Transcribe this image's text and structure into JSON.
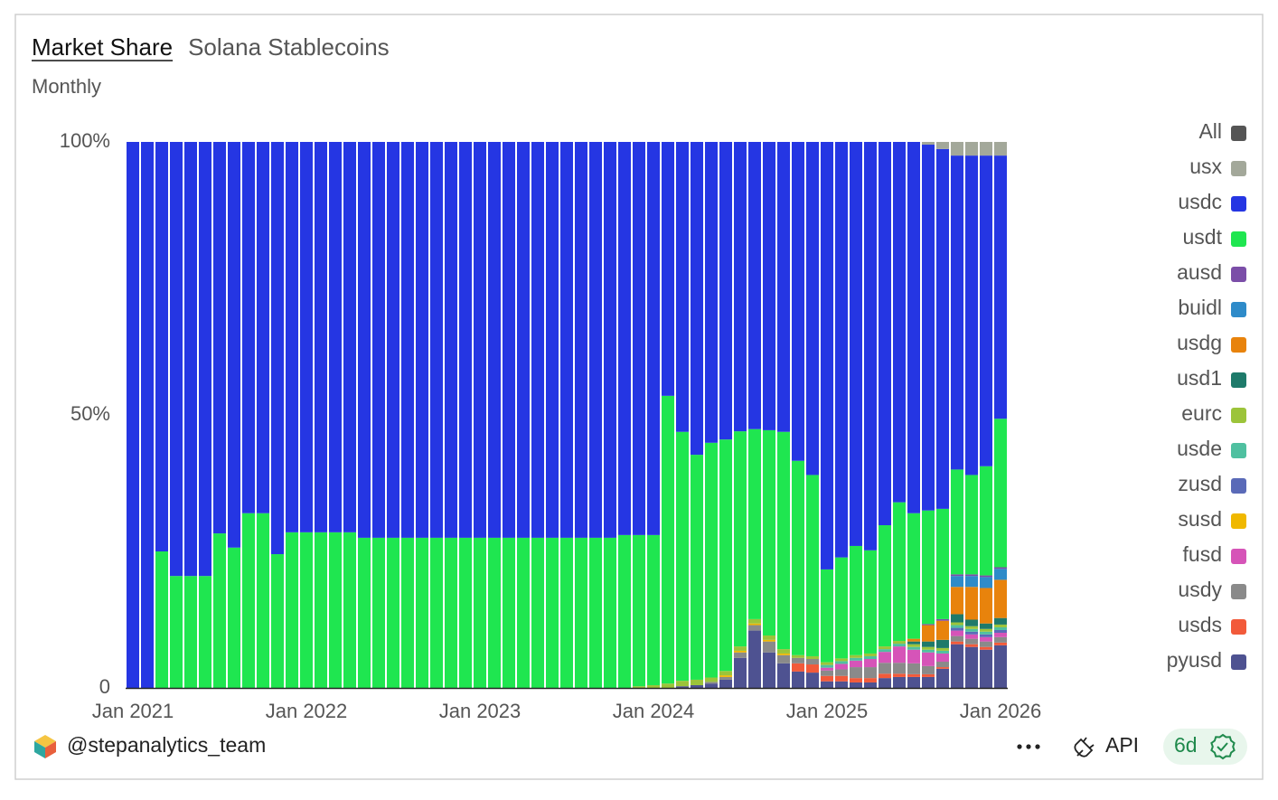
{
  "header": {
    "title": "Market Share",
    "subtitle": "Solana Stablecoins",
    "period": "Monthly"
  },
  "footer": {
    "author": "@stepanalytics_team",
    "api": "API",
    "age": "6d"
  },
  "legend_toggle": {
    "label": "All",
    "color": "#555555"
  },
  "chart_data": {
    "type": "stacked_bar",
    "categories": [
      "Jan 2021",
      null,
      null,
      null,
      null,
      null,
      null,
      null,
      null,
      null,
      null,
      null,
      "Jan 2022",
      null,
      null,
      null,
      null,
      null,
      null,
      null,
      null,
      null,
      null,
      null,
      "Jan 2023",
      null,
      null,
      null,
      null,
      null,
      null,
      null,
      null,
      null,
      null,
      null,
      "Jan 2024",
      null,
      null,
      null,
      null,
      null,
      null,
      null,
      null,
      null,
      null,
      null,
      "Jan 2025",
      null,
      null,
      null,
      null,
      null,
      null,
      null,
      null,
      null,
      null,
      null,
      "Jan 2026"
    ],
    "ylim": [
      0,
      100
    ],
    "yticks": [
      0,
      {
        "value": 50,
        "label": "50%"
      },
      {
        "value": 100,
        "label": "100%"
      }
    ],
    "legend": "right",
    "series": [
      {
        "name": "usx",
        "color": "#a3a89a",
        "values": [
          0,
          0,
          0,
          0,
          0,
          0,
          0,
          0,
          0,
          0,
          0,
          0,
          0,
          0,
          0,
          0,
          0,
          0,
          0,
          0,
          0,
          0,
          0,
          0,
          0,
          0,
          0,
          0,
          0,
          0,
          0,
          0,
          0,
          0,
          0,
          0,
          0,
          0,
          0,
          0,
          0,
          0,
          0,
          0,
          0,
          0,
          0,
          0,
          0,
          0,
          0,
          0,
          0,
          0,
          0,
          0.5,
          1.3,
          2.5,
          2.5,
          2.5,
          2.5
        ]
      },
      {
        "name": "usdc",
        "color": "#2536e3",
        "values": [
          100,
          100,
          75,
          79.5,
          79.5,
          79.5,
          71.7,
          74.3,
          68,
          68,
          75.5,
          71.5,
          71.5,
          71.5,
          71.5,
          71.5,
          72.5,
          72.5,
          72.5,
          72.5,
          72.5,
          72.5,
          72.5,
          72.5,
          72.5,
          72.5,
          72.5,
          72.5,
          72.5,
          72.5,
          72.5,
          72.5,
          72.5,
          72.5,
          72,
          72,
          72,
          46.5,
          53.1,
          57.3,
          55.1,
          54.5,
          53,
          52.6,
          52.8,
          53.1,
          58.4,
          61,
          78.3,
          76.1,
          74,
          74.8,
          70.2,
          66,
          68,
          67,
          65.9,
          57.5,
          58.5,
          56.9,
          48.2
        ]
      },
      {
        "name": "usdt",
        "color": "#1fe650",
        "values": [
          0,
          0,
          25,
          20.5,
          20.5,
          20.5,
          28.3,
          25.7,
          32,
          32,
          24.5,
          28.5,
          28.5,
          28.5,
          28.5,
          28.5,
          27.5,
          27.5,
          27.5,
          27.5,
          27.5,
          27.5,
          27.5,
          27.5,
          27.5,
          27.5,
          27.5,
          27.5,
          27.5,
          27.5,
          27.5,
          27.5,
          27.5,
          27.5,
          28,
          27.7,
          27.5,
          52.7,
          45.6,
          41.2,
          43,
          42.4,
          39.4,
          34.8,
          37.6,
          39.8,
          35.6,
          33.2,
          17,
          18.5,
          20,
          18.9,
          22.2,
          25.4,
          23,
          20.8,
          20.2,
          19.2,
          18.2,
          20,
          27.2
        ]
      },
      {
        "name": "ausd",
        "color": "#7b4ea8",
        "values": [
          0,
          0,
          0,
          0,
          0,
          0,
          0,
          0,
          0,
          0,
          0,
          0,
          0,
          0,
          0,
          0,
          0,
          0,
          0,
          0,
          0,
          0,
          0,
          0,
          0,
          0,
          0,
          0,
          0,
          0,
          0,
          0,
          0,
          0,
          0,
          0,
          0,
          0,
          0,
          0,
          0,
          0,
          0,
          0,
          0,
          0,
          0,
          0,
          0,
          0,
          0,
          0,
          0,
          0,
          0,
          0.2,
          0.3,
          0.3,
          0.3,
          0.3,
          0.3
        ]
      },
      {
        "name": "buidl",
        "color": "#2e8bc9",
        "values": [
          0,
          0,
          0,
          0,
          0,
          0,
          0,
          0,
          0,
          0,
          0,
          0,
          0,
          0,
          0,
          0,
          0,
          0,
          0,
          0,
          0,
          0,
          0,
          0,
          0,
          0,
          0,
          0,
          0,
          0,
          0,
          0,
          0,
          0,
          0,
          0,
          0,
          0,
          0,
          0,
          0,
          0,
          0,
          0,
          0,
          0,
          0,
          0,
          0,
          0,
          0,
          0,
          0,
          0,
          0,
          0,
          0,
          2,
          2,
          2,
          2
        ]
      },
      {
        "name": "usdg",
        "color": "#e8830c",
        "values": [
          0,
          0,
          0,
          0,
          0,
          0,
          0,
          0,
          0,
          0,
          0,
          0,
          0,
          0,
          0,
          0,
          0,
          0,
          0,
          0,
          0,
          0,
          0,
          0,
          0,
          0,
          0,
          0,
          0,
          0,
          0,
          0,
          0,
          0,
          0,
          0,
          0,
          0,
          0,
          0,
          0,
          0,
          0,
          0,
          0,
          0,
          0,
          0,
          0,
          0,
          0,
          0,
          0,
          0,
          0.5,
          3,
          3.5,
          5,
          6,
          6.5,
          7
        ]
      },
      {
        "name": "usd1",
        "color": "#1e7a6a",
        "values": [
          0,
          0,
          0,
          0,
          0,
          0,
          0,
          0,
          0,
          0,
          0,
          0,
          0,
          0,
          0,
          0,
          0,
          0,
          0,
          0,
          0,
          0,
          0,
          0,
          0,
          0,
          0,
          0,
          0,
          0,
          0,
          0,
          0,
          0,
          0,
          0,
          0,
          0,
          0,
          0,
          0,
          0,
          0,
          0,
          0,
          0,
          0,
          0,
          0,
          0,
          0,
          0,
          0,
          0,
          0.5,
          1,
          1.5,
          1.5,
          1.2,
          1,
          1.2
        ]
      },
      {
        "name": "eurc",
        "color": "#9cc43a",
        "values": [
          0,
          0,
          0,
          0,
          0,
          0,
          0,
          0,
          0,
          0,
          0,
          0,
          0,
          0,
          0,
          0,
          0,
          0,
          0,
          0,
          0,
          0,
          0,
          0,
          0,
          0,
          0,
          0,
          0,
          0,
          0,
          0,
          0,
          0,
          0,
          0.3,
          0.5,
          0.8,
          1,
          1,
          0.8,
          0.8,
          0.8,
          0.8,
          0.8,
          0.8,
          0.5,
          0.5,
          0.5,
          0.5,
          0.5,
          0.5,
          0.5,
          0.5,
          0.5,
          0.5,
          0.5,
          0.5,
          0.5,
          0.5,
          0.5
        ]
      },
      {
        "name": "usde",
        "color": "#4fc0a0",
        "values": [
          0,
          0,
          0,
          0,
          0,
          0,
          0,
          0,
          0,
          0,
          0,
          0,
          0,
          0,
          0,
          0,
          0,
          0,
          0,
          0,
          0,
          0,
          0,
          0,
          0,
          0,
          0,
          0,
          0,
          0,
          0,
          0,
          0,
          0,
          0,
          0,
          0,
          0,
          0,
          0,
          0,
          0,
          0,
          0,
          0,
          0,
          0,
          0,
          0.5,
          0.5,
          0.5,
          0.5,
          0.5,
          0.5,
          0.5,
          0.5,
          0.5,
          0.5,
          0.5,
          0.5,
          0.5
        ]
      },
      {
        "name": "zusd",
        "color": "#5a6ab8",
        "values": [
          0,
          0,
          0,
          0,
          0,
          0,
          0,
          0,
          0,
          0,
          0,
          0,
          0,
          0,
          0,
          0,
          0,
          0,
          0,
          0,
          0,
          0,
          0,
          0,
          0,
          0,
          0,
          0,
          0,
          0,
          0,
          0,
          0,
          0,
          0,
          0,
          0,
          0,
          0,
          0,
          0,
          0,
          0,
          0,
          0,
          0,
          0,
          0,
          0,
          0,
          0,
          0,
          0,
          0,
          0,
          0,
          0,
          0.5,
          0.5,
          0.5,
          0.5
        ]
      },
      {
        "name": "susd",
        "color": "#f0b800",
        "values": [
          0,
          0,
          0,
          0,
          0,
          0,
          0,
          0,
          0,
          0,
          0,
          0,
          0,
          0,
          0,
          0,
          0,
          0,
          0,
          0,
          0,
          0,
          0,
          0,
          0,
          0,
          0,
          0,
          0,
          0,
          0,
          0,
          0,
          0,
          0,
          0,
          0,
          0,
          0,
          0,
          0,
          0.3,
          0.3,
          0.3,
          0.3,
          0.3,
          0,
          0,
          0,
          0,
          0,
          0,
          0,
          0,
          0,
          0,
          0,
          0,
          0,
          0,
          0
        ]
      },
      {
        "name": "fusd",
        "color": "#d654b8",
        "values": [
          0,
          0,
          0,
          0,
          0,
          0,
          0,
          0,
          0,
          0,
          0,
          0,
          0,
          0,
          0,
          0,
          0,
          0,
          0,
          0,
          0,
          0,
          0,
          0,
          0,
          0,
          0,
          0,
          0,
          0,
          0,
          0,
          0,
          0,
          0,
          0,
          0,
          0,
          0,
          0,
          0,
          0,
          0,
          0,
          0,
          0,
          0,
          0,
          0.5,
          1,
          1.2,
          1.5,
          2,
          3,
          2.5,
          2.5,
          1.5,
          1,
          0.8,
          0.8,
          0.8
        ]
      },
      {
        "name": "usdy",
        "color": "#8a8a8a",
        "values": [
          0,
          0,
          0,
          0,
          0,
          0,
          0,
          0,
          0,
          0,
          0,
          0,
          0,
          0,
          0,
          0,
          0,
          0,
          0,
          0,
          0,
          0,
          0,
          0,
          0,
          0,
          0,
          0,
          0,
          0,
          0,
          0,
          0,
          0,
          0,
          0,
          0,
          0,
          0,
          0,
          0.3,
          0.5,
          1,
          1,
          2,
          1.5,
          1,
          1,
          1,
          1.2,
          2,
          2,
          2,
          2,
          2,
          1.5,
          1,
          1,
          1,
          1,
          1
        ]
      },
      {
        "name": "usds",
        "color": "#f25a3a",
        "values": [
          0,
          0,
          0,
          0,
          0,
          0,
          0,
          0,
          0,
          0,
          0,
          0,
          0,
          0,
          0,
          0,
          0,
          0,
          0,
          0,
          0,
          0,
          0,
          0,
          0,
          0,
          0,
          0,
          0,
          0,
          0,
          0,
          0,
          0,
          0,
          0,
          0,
          0,
          0,
          0,
          0,
          0,
          0,
          0,
          0,
          0,
          1.5,
          1.5,
          1,
          1,
          0.8,
          0.8,
          0.8,
          0.6,
          0.5,
          0.5,
          0.3,
          0.5,
          0.5,
          0.5,
          0.5
        ]
      },
      {
        "name": "pyusd",
        "color": "#4e5291",
        "values": [
          0,
          0,
          0,
          0,
          0,
          0,
          0,
          0,
          0,
          0,
          0,
          0,
          0,
          0,
          0,
          0,
          0,
          0,
          0,
          0,
          0,
          0,
          0,
          0,
          0,
          0,
          0,
          0,
          0,
          0,
          0,
          0,
          0,
          0,
          0,
          0,
          0,
          0,
          0.3,
          0.5,
          0.8,
          1.5,
          5.5,
          10.5,
          6.5,
          4.5,
          3,
          2.8,
          1.2,
          1.2,
          1,
          1,
          1.8,
          2,
          2,
          2,
          3.5,
          8,
          7.5,
          7,
          7.8
        ]
      }
    ]
  }
}
